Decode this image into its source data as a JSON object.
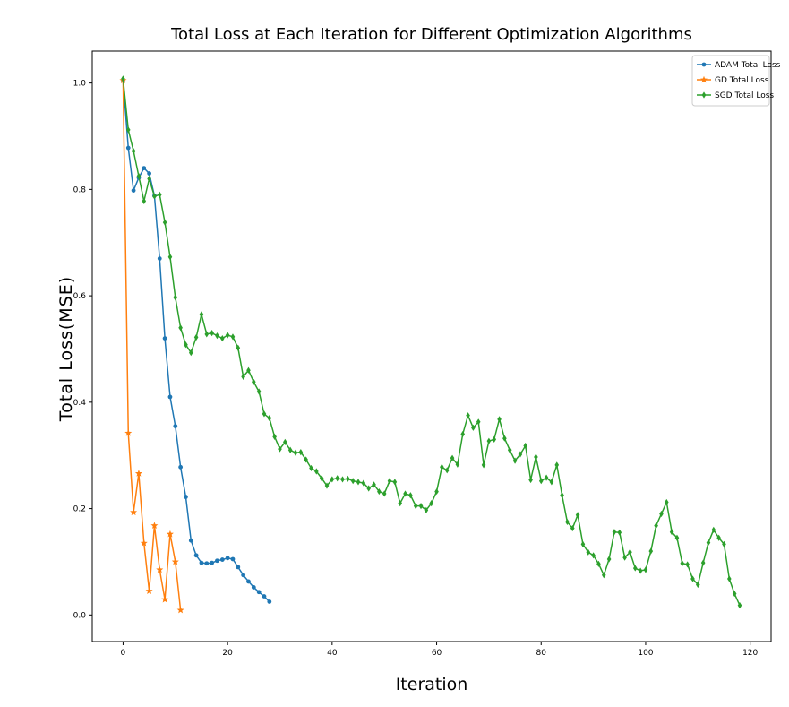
{
  "chart_data": {
    "type": "line",
    "title": "Total Loss at Each Iteration for Different Optimization Algorithms",
    "xlabel": "Iteration",
    "ylabel": "Total Loss(MSE)",
    "xlim": [
      -5.9,
      124.0
    ],
    "ylim": [
      -0.05,
      1.06
    ],
    "xticks": [
      0,
      20,
      40,
      60,
      80,
      100,
      120
    ],
    "yticks": [
      0.0,
      0.2,
      0.4,
      0.6,
      0.8,
      1.0
    ],
    "xtick_labels": [
      "0",
      "20",
      "40",
      "60",
      "80",
      "100",
      "120"
    ],
    "ytick_labels": [
      "0.0",
      "0.2",
      "0.4",
      "0.6",
      "0.8",
      "1.0"
    ],
    "grid": false,
    "legend_position": "top-right",
    "series": [
      {
        "name": "ADAM Total Loss",
        "color": "#1f77b4",
        "marker": "circle",
        "values": [
          1.005,
          0.878,
          0.798,
          0.822,
          0.84,
          0.83,
          0.788,
          0.67,
          0.52,
          0.41,
          0.355,
          0.278,
          0.222,
          0.14,
          0.112,
          0.098,
          0.097,
          0.098,
          0.102,
          0.104,
          0.107,
          0.105,
          0.09,
          0.075,
          0.063,
          0.052,
          0.043,
          0.035,
          0.025
        ]
      },
      {
        "name": "GD Total Loss",
        "color": "#ff7f0e",
        "marker": "star",
        "values": [
          1.005,
          0.342,
          0.193,
          0.266,
          0.135,
          0.045,
          0.168,
          0.085,
          0.029,
          0.152,
          0.1,
          0.009
        ]
      },
      {
        "name": "SGD Total Loss",
        "color": "#2ca02c",
        "marker": "diamond",
        "values": [
          1.008,
          0.912,
          0.872,
          0.825,
          0.778,
          0.82,
          0.787,
          0.79,
          0.738,
          0.673,
          0.597,
          0.54,
          0.508,
          0.493,
          0.522,
          0.565,
          0.528,
          0.53,
          0.525,
          0.52,
          0.526,
          0.523,
          0.502,
          0.448,
          0.46,
          0.438,
          0.42,
          0.378,
          0.37,
          0.335,
          0.312,
          0.325,
          0.31,
          0.305,
          0.306,
          0.292,
          0.276,
          0.27,
          0.257,
          0.243,
          0.255,
          0.257,
          0.255,
          0.256,
          0.252,
          0.25,
          0.248,
          0.238,
          0.245,
          0.232,
          0.228,
          0.252,
          0.25,
          0.21,
          0.228,
          0.225,
          0.205,
          0.205,
          0.197,
          0.21,
          0.232,
          0.278,
          0.272,
          0.295,
          0.283,
          0.34,
          0.375,
          0.352,
          0.363,
          0.282,
          0.327,
          0.33,
          0.368,
          0.332,
          0.31,
          0.29,
          0.302,
          0.318,
          0.254,
          0.297,
          0.252,
          0.258,
          0.25,
          0.282,
          0.225,
          0.175,
          0.163,
          0.188,
          0.133,
          0.118,
          0.112,
          0.096,
          0.075,
          0.105,
          0.156,
          0.155,
          0.108,
          0.118,
          0.088,
          0.083,
          0.085,
          0.12,
          0.168,
          0.19,
          0.212,
          0.156,
          0.145,
          0.097,
          0.095,
          0.068,
          0.057,
          0.098,
          0.136,
          0.16,
          0.145,
          0.133,
          0.068,
          0.04,
          0.018
        ]
      }
    ]
  }
}
